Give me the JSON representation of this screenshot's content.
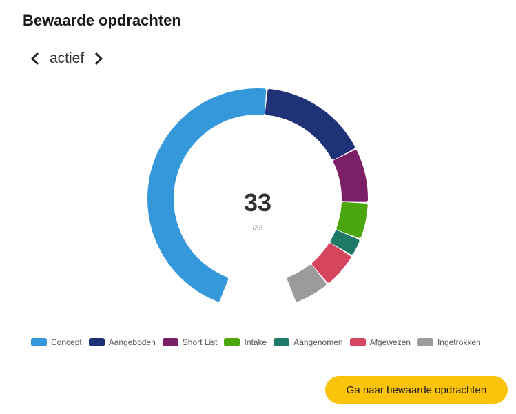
{
  "title": "Bewaarde opdrachten",
  "nav": {
    "label": "actief",
    "prev_icon": "chevron-left-icon",
    "next_icon": "chevron-right-icon"
  },
  "chart_data": {
    "type": "donut",
    "center_value": "33",
    "center_sub": "/33",
    "legend_position": "bottom",
    "categories": [
      "Concept",
      "Aangeboden",
      "Short List",
      "Intake",
      "Aangenomen",
      "Afgewezen",
      "Ingetrokken"
    ],
    "values": [
      17,
      6,
      3,
      2,
      1,
      2,
      2
    ],
    "colors": [
      "#3498db",
      "#1f3278",
      "#7b1f67",
      "#4aa60c",
      "#1e7a67",
      "#d5465e",
      "#9b9b9b"
    ]
  },
  "button": {
    "label": "Ga naar bewaarde opdrachten"
  }
}
